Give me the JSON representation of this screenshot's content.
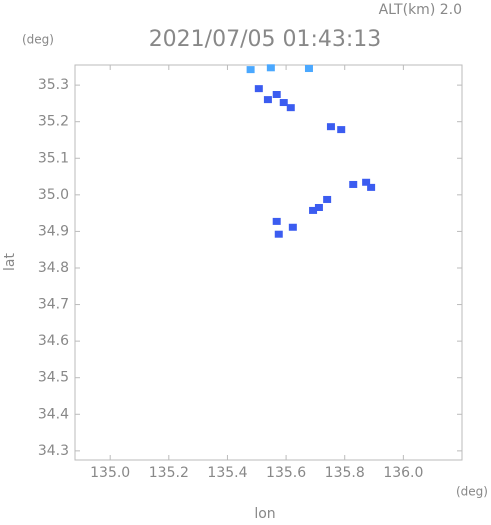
{
  "chart_data": {
    "type": "scatter",
    "title": "2021/07/05 01:43:13",
    "subtitle": "ALT(km) 2.0",
    "x_label": "lon",
    "y_label": "lat",
    "x_unit": "(deg)",
    "y_unit": "(deg)",
    "xlim": [
      134.88,
      136.2
    ],
    "ylim": [
      34.275,
      35.355
    ],
    "xticks": [
      {
        "value": 135,
        "label": "135.0"
      },
      135.2,
      135.4,
      135.6,
      135.8,
      {
        "value": 136,
        "label": "136.0"
      }
    ],
    "yticks": [
      34.3,
      34.4,
      34.5,
      34.6,
      34.7,
      34.8,
      34.9,
      {
        "value": 35,
        "label": "35.0"
      },
      35.1,
      35.2,
      35.3
    ],
    "series": [
      {
        "color": "#3b5cf0",
        "x": [
          135.507,
          135.538,
          135.568,
          135.592,
          135.616,
          135.753,
          135.788,
          135.829,
          135.873,
          135.89,
          135.74,
          135.712,
          135.692,
          135.568,
          135.623,
          135.575
        ],
        "values": [
          35.289,
          35.259,
          35.273,
          35.251,
          35.237,
          35.185,
          35.177,
          35.027,
          35.033,
          35.019,
          34.986,
          34.964,
          34.956,
          34.926,
          34.91,
          34.891
        ]
      },
      {
        "color": "#4aa8ff",
        "x": [
          135.479,
          135.548,
          135.678
        ],
        "values": [
          35.341,
          35.346,
          35.344
        ]
      }
    ]
  }
}
